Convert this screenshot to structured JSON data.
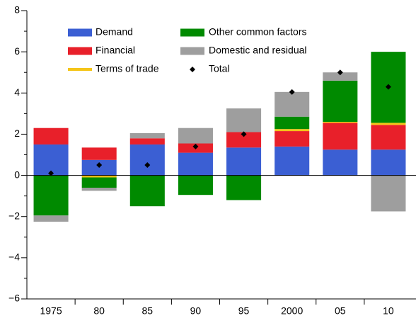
{
  "chart_data": {
    "type": "stacked_bar",
    "categories": [
      "1975",
      "80",
      "85",
      "90",
      "95",
      "2000",
      "05",
      "10"
    ],
    "series": [
      {
        "name": "Demand",
        "color": "#3b5fd3",
        "values": [
          1.5,
          0.75,
          1.5,
          1.1,
          1.35,
          1.4,
          1.25,
          1.25
        ]
      },
      {
        "name": "Financial",
        "color": "#e8202a",
        "values": [
          0.8,
          0.6,
          0.3,
          0.45,
          0.75,
          0.75,
          1.3,
          1.2
        ]
      },
      {
        "name": "Terms of trade",
        "color": "#f5c518",
        "values": [
          0,
          -0.1,
          0,
          0,
          0,
          0.1,
          0.05,
          0.1
        ]
      },
      {
        "name": "Other common factors",
        "color": "#008a00",
        "values": [
          -1.95,
          -0.5,
          -1.5,
          -0.95,
          -1.2,
          0.6,
          2.0,
          3.45
        ]
      },
      {
        "name": "Domestic and residual",
        "color": "#9e9e9e",
        "values": [
          -0.3,
          -0.15,
          0.25,
          0.75,
          1.15,
          1.2,
          0.4,
          -1.75
        ]
      }
    ],
    "total": {
      "name": "Total",
      "color": "#000000",
      "values": [
        0.1,
        0.5,
        0.5,
        1.4,
        2.0,
        4.05,
        5.0,
        4.3
      ]
    },
    "ylim": [
      -6,
      8
    ],
    "yticks": [
      {
        "value": -6,
        "label": "−6"
      },
      {
        "value": -4,
        "label": "−4"
      },
      {
        "value": -2,
        "label": "−2"
      },
      0,
      2,
      4,
      6,
      8
    ],
    "yminorticks": [
      -5,
      -3,
      -1,
      1,
      3,
      5,
      7
    ]
  }
}
